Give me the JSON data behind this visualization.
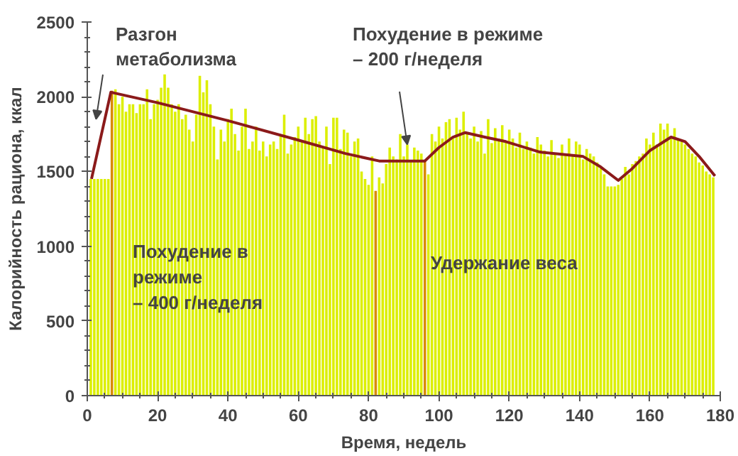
{
  "chart_data": {
    "type": "bar",
    "xlabel": "Время, недель",
    "ylabel": "Калорийность рациона, ккал",
    "x": [
      1,
      2,
      3,
      4,
      5,
      6,
      7,
      8,
      9,
      10,
      11,
      12,
      13,
      14,
      15,
      16,
      17,
      18,
      19,
      20,
      21,
      22,
      23,
      24,
      25,
      26,
      27,
      28,
      29,
      30,
      31,
      32,
      33,
      34,
      35,
      36,
      37,
      38,
      39,
      40,
      41,
      42,
      43,
      44,
      45,
      46,
      47,
      48,
      49,
      50,
      51,
      52,
      53,
      54,
      55,
      56,
      57,
      58,
      59,
      60,
      61,
      62,
      63,
      64,
      65,
      66,
      67,
      68,
      69,
      70,
      71,
      72,
      73,
      74,
      75,
      76,
      77,
      78,
      79,
      80,
      81,
      82,
      83,
      84,
      85,
      86,
      87,
      88,
      89,
      90,
      91,
      92,
      93,
      94,
      95,
      96,
      97,
      98,
      99,
      100,
      101,
      102,
      103,
      104,
      105,
      106,
      107,
      108,
      109,
      110,
      111,
      112,
      113,
      114,
      115,
      116,
      117,
      118,
      119,
      120,
      121,
      122,
      123,
      124,
      125,
      126,
      127,
      128,
      129,
      130,
      131,
      132,
      133,
      134,
      135,
      136,
      137,
      138,
      139,
      140,
      141,
      142,
      143,
      144,
      145,
      146,
      147,
      148,
      149,
      150,
      151,
      152,
      153,
      154,
      155,
      156,
      157,
      158,
      159,
      160,
      161,
      162,
      163,
      164,
      165,
      166,
      167,
      168,
      169,
      170,
      171,
      172,
      173,
      174,
      175,
      176,
      177,
      178
    ],
    "xlim": [
      0,
      180
    ],
    "xticks": [
      0,
      20,
      40,
      60,
      80,
      100,
      120,
      140,
      160,
      180
    ],
    "ylim": [
      0,
      2500
    ],
    "yticks": [
      0,
      500,
      1000,
      1500,
      2000,
      2500
    ],
    "grid": false,
    "series": [
      {
        "color": "#dcef00",
        "colors": [
          "#dcef00",
          "#dcef00",
          "#dcef00",
          "#dcef00",
          "#dcef00",
          "#dcef00",
          "#d98a00",
          "#dcef00",
          "#dcef00",
          "#dcef00",
          "#dcef00",
          "#dcef00",
          "#dcef00",
          "#dcef00",
          "#dcef00",
          "#dcef00",
          "#dcef00",
          "#dcef00",
          "#dcef00",
          "#dcef00",
          "#dcef00",
          "#dcef00",
          "#dcef00",
          "#dcef00",
          "#dcef00",
          "#dcef00",
          "#dcef00",
          "#dcef00",
          "#dcef00",
          "#dcef00",
          "#dcef00",
          "#dcef00",
          "#dcef00",
          "#dcef00",
          "#dcef00",
          "#dcef00",
          "#dcef00",
          "#dcef00",
          "#dcef00",
          "#dcef00",
          "#dcef00",
          "#dcef00",
          "#dcef00",
          "#dcef00",
          "#dcef00",
          "#dcef00",
          "#dcef00",
          "#dcef00",
          "#dcef00",
          "#dcef00",
          "#dcef00",
          "#dcef00",
          "#dcef00",
          "#dcef00",
          "#dcef00",
          "#dcef00",
          "#dcef00",
          "#dcef00",
          "#dcef00",
          "#dcef00",
          "#dcef00",
          "#dcef00",
          "#dcef00",
          "#dcef00",
          "#dcef00",
          "#dcef00",
          "#dcef00",
          "#dcef00",
          "#dcef00",
          "#dcef00",
          "#dcef00",
          "#dcef00",
          "#dcef00",
          "#dcef00",
          "#dcef00",
          "#dcef00",
          "#dcef00",
          "#dcef00",
          "#dcef00",
          "#dcef00",
          "#dcef00",
          "#d98a00",
          "#dcef00",
          "#dcef00",
          "#dcef00",
          "#dcef00",
          "#dcef00",
          "#dcef00",
          "#dcef00",
          "#dcef00",
          "#dcef00",
          "#dcef00",
          "#dcef00",
          "#dcef00",
          "#dcef00",
          "#d98a00",
          "#dcef00",
          "#dcef00",
          "#dcef00",
          "#dcef00",
          "#dcef00",
          "#dcef00",
          "#dcef00",
          "#dcef00",
          "#dcef00",
          "#dcef00",
          "#dcef00",
          "#dcef00",
          "#dcef00",
          "#dcef00",
          "#dcef00",
          "#dcef00",
          "#dcef00",
          "#dcef00",
          "#dcef00",
          "#dcef00",
          "#dcef00",
          "#dcef00",
          "#dcef00",
          "#dcef00",
          "#dcef00",
          "#dcef00",
          "#dcef00",
          "#dcef00",
          "#dcef00",
          "#dcef00",
          "#dcef00",
          "#dcef00",
          "#dcef00",
          "#dcef00",
          "#dcef00",
          "#dcef00",
          "#dcef00",
          "#dcef00",
          "#dcef00",
          "#dcef00",
          "#dcef00",
          "#dcef00",
          "#dcef00",
          "#dcef00",
          "#dcef00",
          "#dcef00",
          "#dcef00",
          "#dcef00",
          "#dcef00",
          "#dcef00",
          "#dcef00",
          "#dcef00",
          "#dcef00",
          "#dcef00",
          "#dcef00",
          "#dcef00",
          "#dcef00",
          "#dcef00",
          "#dcef00",
          "#dcef00",
          "#dcef00",
          "#dcef00",
          "#dcef00",
          "#dcef00",
          "#dcef00",
          "#dcef00",
          "#dcef00",
          "#dcef00",
          "#dcef00",
          "#dcef00",
          "#dcef00",
          "#dcef00",
          "#dcef00",
          "#dcef00",
          "#dcef00",
          "#dcef00",
          "#dcef00",
          "#dcef00",
          "#dcef00",
          "#dcef00",
          "#dcef00",
          "#dcef00"
        ],
        "values": [
          1450,
          1450,
          1450,
          1450,
          1450,
          1450,
          2040,
          2050,
          1950,
          2000,
          1900,
          1950,
          1950,
          1890,
          1950,
          1950,
          2050,
          1850,
          1950,
          1980,
          2060,
          2150,
          2060,
          1950,
          1900,
          1950,
          1850,
          1880,
          1780,
          1700,
          1880,
          2140,
          2030,
          2110,
          1950,
          1800,
          1580,
          1780,
          1700,
          1850,
          1920,
          1750,
          1640,
          1800,
          1920,
          1650,
          1700,
          1800,
          1640,
          1700,
          1600,
          1680,
          1700,
          1650,
          1740,
          1880,
          1620,
          1680,
          1730,
          1800,
          1700,
          1860,
          1750,
          1850,
          1870,
          1700,
          1660,
          1800,
          1550,
          1860,
          1860,
          1650,
          1780,
          1760,
          1600,
          1700,
          1720,
          1500,
          1450,
          1410,
          1600,
          1370,
          1460,
          1420,
          1550,
          1660,
          1600,
          1580,
          1750,
          1600,
          1680,
          1570,
          1660,
          1640,
          1620,
          1570,
          1480,
          1750,
          1700,
          1800,
          1720,
          1830,
          1850,
          1720,
          1860,
          1780,
          1900,
          1750,
          1720,
          1800,
          1700,
          1770,
          1620,
          1850,
          1690,
          1790,
          1720,
          1810,
          1700,
          1780,
          1720,
          1660,
          1760,
          1650,
          1700,
          1660,
          1620,
          1730,
          1680,
          1640,
          1600,
          1710,
          1620,
          1590,
          1680,
          1620,
          1720,
          1610,
          1700,
          1680,
          1580,
          1650,
          1620,
          1600,
          1560,
          1520,
          1480,
          1400,
          1400,
          1400,
          1410,
          1450,
          1530,
          1480,
          1550,
          1570,
          1600,
          1620,
          1720,
          1680,
          1760,
          1680,
          1820,
          1780,
          1820,
          1720,
          1790,
          1720,
          1700,
          1680,
          1650,
          1620,
          1600,
          1560,
          1540,
          1500,
          1480,
          1460
        ]
      },
      {
        "type": "line",
        "color": "#8b1a1a",
        "x": [
          1.2,
          6.7,
          20,
          40,
          60,
          73.4,
          83,
          96,
          100,
          104,
          107.5,
          113,
          119,
          128.7,
          141,
          146,
          151,
          155,
          160,
          166,
          170,
          174,
          178.5
        ],
        "values": [
          1450,
          2030,
          1960,
          1840,
          1710,
          1620,
          1570,
          1570,
          1660,
          1730,
          1760,
          1730,
          1700,
          1630,
          1600,
          1530,
          1440,
          1520,
          1640,
          1730,
          1700,
          1600,
          1470
        ]
      }
    ],
    "annotations": [
      {
        "text": "Разгон\nметаболизма",
        "x": 2.5,
        "y": 1850
      },
      {
        "text": "Похудение в режиме\n– 200 г/неделя",
        "x": 91,
        "y": 1680
      },
      "Похудение в\nрежиме\n– 400 г/неделя",
      "Удержание веса"
    ]
  }
}
